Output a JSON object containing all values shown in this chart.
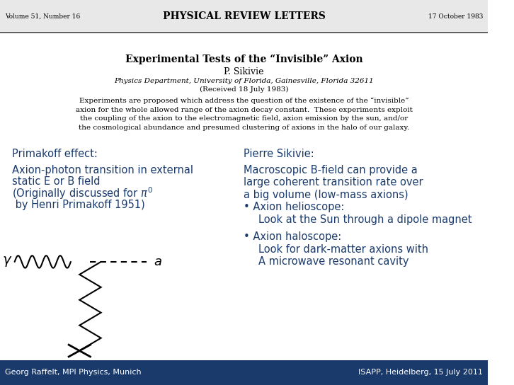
{
  "bg_color": "#ffffff",
  "blue_color": "#1a3a6b",
  "header_left": "Volume 51, Number 16",
  "header_center": "PHYSICAL REVIEW LETTERS",
  "header_right": "17 October 1983",
  "paper_title": "Experimental Tests of the “Invisible” Axion",
  "paper_author": "P. Sikivie",
  "paper_affil": "Physics Department, University of Florida, Gainesville, Florida 32611",
  "paper_received": "(Received 18 July 1983)",
  "paper_abstract_lines": [
    "Experiments are proposed which address the question of the existence of the “invisible”",
    "axion for the whole allowed range of the axion decay constant.  These experiments exploit",
    "the coupling of the axion to the electromagnetic field, axion emission by the sun, and/or",
    "the cosmological abundance and presumed clustering of axions in the halo of our galaxy."
  ],
  "left_heading": "Primakoff effect:",
  "left_text_lines": [
    "Axion-photon transition in external",
    "static E or B field",
    "(Originally discussed for π⁰",
    " by Henri Primakoff 1951)"
  ],
  "right_heading": "Pierre Sikivie:",
  "right_main_lines": [
    "Macroscopic B-field can provide a",
    "large coherent transition rate over",
    "a big volume (low-mass axions)"
  ],
  "right_bullet1_head": "• Axion helioscope:",
  "right_bullet1_body": "Look at the Sun through a dipole magnet",
  "right_bullet2_head": "• Axion haloscope:",
  "right_bullet2_lines": [
    "Look for dark-matter axions with",
    "A microwave resonant cavity"
  ],
  "footer_left": "Georg Raffelt, MPI Physics, Munich",
  "footer_right": "ISAPP, Heidelberg, 15 July 2011",
  "footer_bg": "#1a3a6b",
  "header_bg": "#e8e8e8"
}
